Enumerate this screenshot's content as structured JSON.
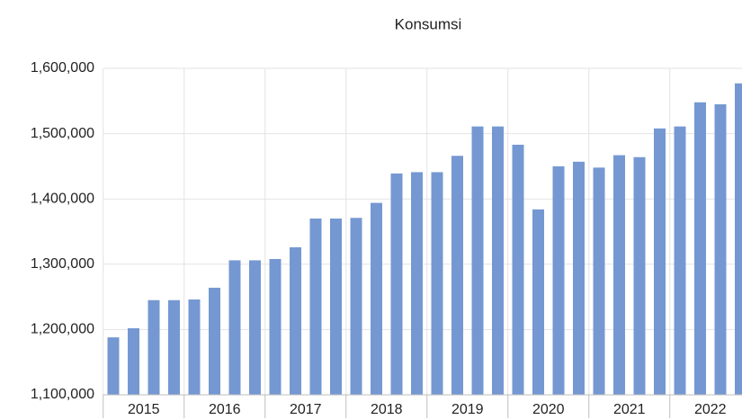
{
  "chart_data": {
    "type": "bar",
    "title": "Konsumsi",
    "categories": [
      null,
      null,
      null,
      null,
      null,
      null,
      null,
      null,
      null,
      null,
      null,
      null,
      null,
      null,
      null,
      null,
      null,
      null,
      null,
      null,
      null,
      null,
      null,
      null,
      null,
      null,
      null,
      null,
      null,
      null,
      null,
      null
    ],
    "year_labels": [
      "2015",
      "2016",
      "2017",
      "2018",
      "2019",
      "2020",
      "2021",
      "2022"
    ],
    "values": [
      1188000,
      1202000,
      1245000,
      1245000,
      1246000,
      1264000,
      1306000,
      1306000,
      1308000,
      1326000,
      1370000,
      1370000,
      1371000,
      1394000,
      1439000,
      1441000,
      1441000,
      1466000,
      1511000,
      1511000,
      1483000,
      1384000,
      1450000,
      1457000,
      1448000,
      1467000,
      1464000,
      1508000,
      1511000,
      1548000,
      1545000,
      1577000
    ],
    "color": "#7598d2",
    "ylim": [
      1100000,
      1600000
    ],
    "yticks": [
      {
        "value": 1100000,
        "label": "1,100,000"
      },
      {
        "value": 1200000,
        "label": "1,200,000"
      },
      {
        "value": 1300000,
        "label": "1,300,000"
      },
      {
        "value": 1400000,
        "label": "1,400,000"
      },
      {
        "value": 1500000,
        "label": "1,500,000"
      },
      {
        "value": 1600000,
        "label": "1,600,000"
      }
    ],
    "grid": true
  }
}
